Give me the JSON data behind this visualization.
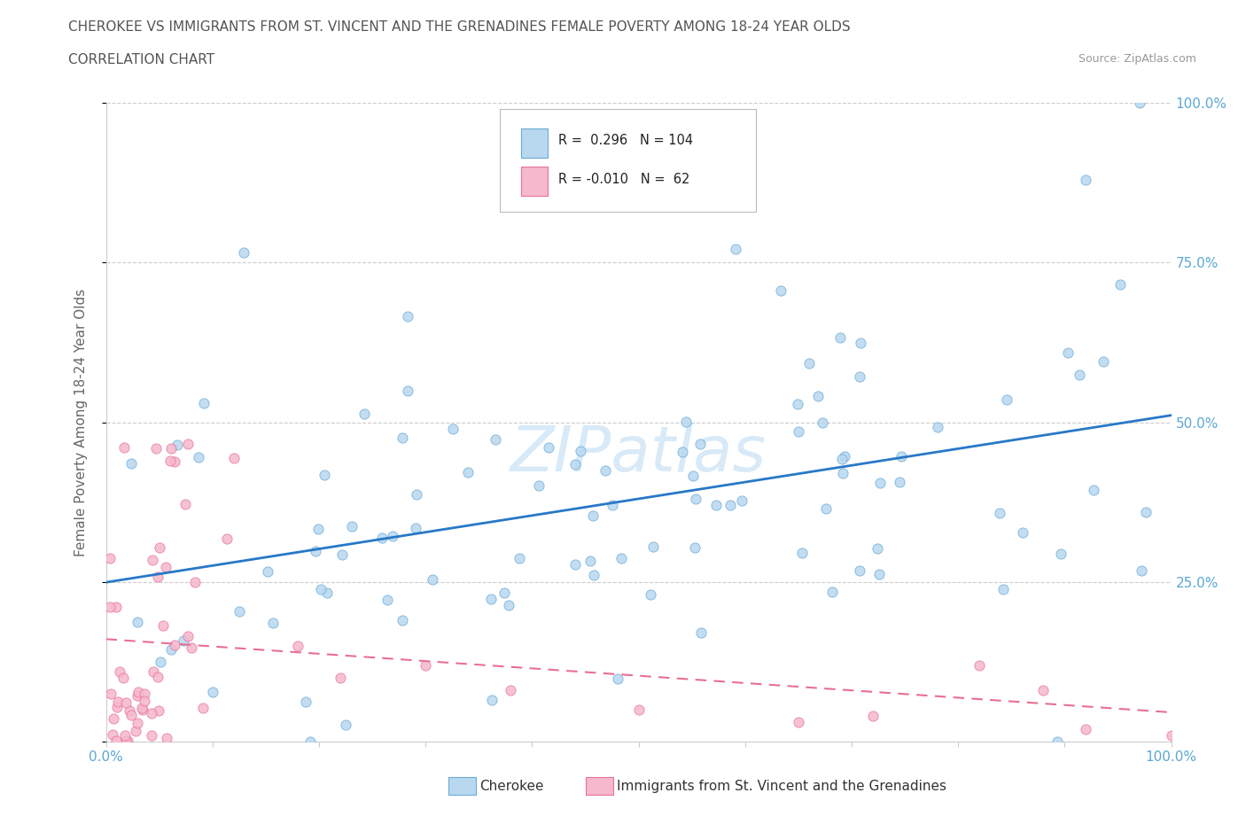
{
  "title": "CHEROKEE VS IMMIGRANTS FROM ST. VINCENT AND THE GRENADINES FEMALE POVERTY AMONG 18-24 YEAR OLDS",
  "subtitle": "CORRELATION CHART",
  "source": "Source: ZipAtlas.com",
  "ylabel": "Female Poverty Among 18-24 Year Olds",
  "legend_1_label": "Cherokee",
  "legend_2_label": "Immigrants from St. Vincent and the Grenadines",
  "r1": 0.296,
  "n1": 104,
  "r2": -0.01,
  "n2": 62,
  "blue_scatter_face": "#b8d8f0",
  "blue_scatter_edge": "#6aaad4",
  "pink_scatter_face": "#f5b8cc",
  "pink_scatter_edge": "#e870a0",
  "blue_line_color": "#2878c8",
  "pink_line_color": "#e87090",
  "grid_color": "#cccccc",
  "right_tick_color": "#5ba8d4",
  "bottom_tick_color": "#5ba8d4",
  "background_color": "#ffffff",
  "title_color": "#555555",
  "watermark_color": "#d8eaf8",
  "watermark_text": "ZIPatlas"
}
